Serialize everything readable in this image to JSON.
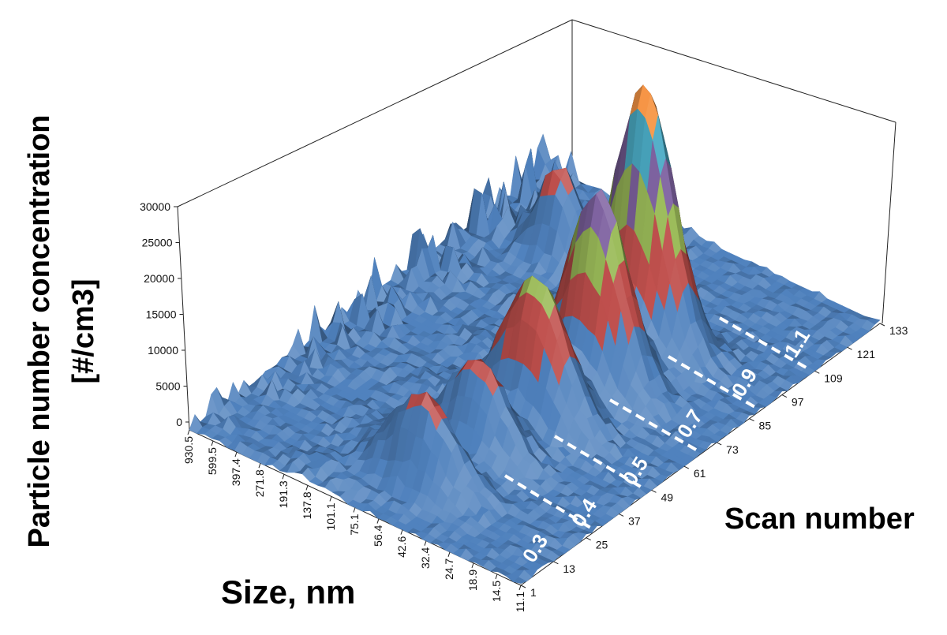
{
  "chart_data": {
    "type": "surface",
    "title": "",
    "zlabel_line1": "Particle number concentration",
    "zlabel_line2": "[#/cm3]",
    "xlabel": "Size, nm",
    "ylabel": "Scan number",
    "zlim": [
      0,
      30000
    ],
    "z_ticks": [
      "0",
      "5000",
      "10000",
      "15000",
      "20000",
      "25000",
      "30000"
    ],
    "size_ticks": [
      "930.5",
      "599.5",
      "397.4",
      "271.8",
      "191.3",
      "137.8",
      "101.1",
      "75.1",
      "56.4",
      "42.6",
      "32.4",
      "24.7",
      "18.9",
      "14.5",
      "11.1"
    ],
    "scan_ticks": [
      "1",
      "13",
      "25",
      "37",
      "49",
      "61",
      "73",
      "85",
      "97",
      "109",
      "121",
      "133"
    ],
    "size_range_nm": [
      11.1,
      930.5
    ],
    "scan_range": [
      1,
      133
    ],
    "color_bands": [
      {
        "max": 10000,
        "color": "#4f81bd"
      },
      {
        "max": 17000,
        "color": "#c0504d"
      },
      {
        "max": 22000,
        "color": "#9bbb59"
      },
      {
        "max": 27000,
        "color": "#8064a2"
      },
      {
        "max": 31000,
        "color": "#4bacc6"
      },
      {
        "max": 100000,
        "color": "#f79646"
      }
    ],
    "peaks": [
      {
        "scan": 19,
        "size_nm": 78,
        "height": 12500,
        "scan_width": 6,
        "size_width": 0.13
      },
      {
        "scan": 37,
        "size_nm": 72,
        "height": 12800,
        "scan_width": 6,
        "size_width": 0.12
      },
      {
        "scan": 55,
        "size_nm": 64,
        "height": 19800,
        "scan_width": 7,
        "size_width": 0.13
      },
      {
        "scan": 74,
        "size_nm": 56,
        "height": 27500,
        "scan_width": 7,
        "size_width": 0.12
      },
      {
        "scan": 93,
        "size_nm": 60,
        "height": 36500,
        "scan_width": 7,
        "size_width": 0.12
      },
      {
        "scan": 108,
        "size_nm": 330,
        "height": 12000,
        "scan_width": 6,
        "size_width": 0.08
      }
    ],
    "annotations": [
      "0.3",
      "0.4",
      "0.5",
      "0.7",
      "0.9",
      "1.1"
    ]
  }
}
